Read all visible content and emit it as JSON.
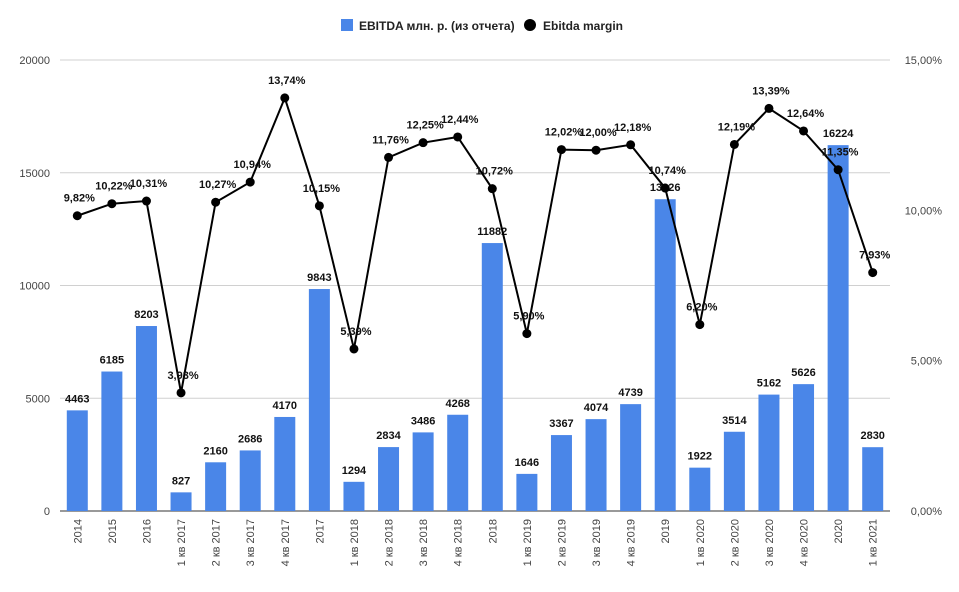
{
  "chart_data": {
    "type": "bar",
    "legend": {
      "bar_series": "EBITDA млн. р. (из отчета)",
      "line_series": "Ebitda margin",
      "placement": "top-center"
    },
    "categories": [
      "2014",
      "2015",
      "2016",
      "1 кв 2017",
      "2 кв 2017",
      "3 кв 2017",
      "4 кв 2017",
      "2017",
      "1 кв 2018",
      "2 кв 2018",
      "3 кв 2018",
      "4 кв 2018",
      "2018",
      "1 кв 2019",
      "2 кв 2019",
      "3 кв 2019",
      "4 кв 2019",
      "2019",
      "1 кв 2020",
      "2 кв 2020",
      "3 кв 2020",
      "4 кв 2020",
      "2020",
      "1 кв 2021"
    ],
    "series": [
      {
        "name": "EBITDA млн. р. (из отчета)",
        "type": "bar",
        "axis": "left",
        "color": "#4a86e8",
        "values": [
          4463,
          6185,
          8203,
          827,
          2160,
          2686,
          4170,
          9843,
          1294,
          2834,
          3486,
          4268,
          11882,
          1646,
          3367,
          4074,
          4739,
          13826,
          1922,
          3514,
          5162,
          5626,
          16224,
          2830
        ],
        "labels": [
          "4463",
          "6185",
          "8203",
          "827",
          "2160",
          "2686",
          "4170",
          "9843",
          "1294",
          "2834",
          "3486",
          "4268",
          "11882",
          "1646",
          "3367",
          "4074",
          "4739",
          "13826",
          "1922",
          "3514",
          "5162",
          "5626",
          "16224",
          "2830"
        ]
      },
      {
        "name": "Ebitda margin",
        "type": "line",
        "axis": "right",
        "color": "#000000",
        "values": [
          9.82,
          10.22,
          10.31,
          3.93,
          10.27,
          10.94,
          13.74,
          10.15,
          5.39,
          11.76,
          12.25,
          12.44,
          10.72,
          5.9,
          12.02,
          12.0,
          12.18,
          10.74,
          6.2,
          12.19,
          13.39,
          12.64,
          11.35,
          7.93
        ],
        "labels": [
          "9,82%",
          "10,22%",
          "10,31%",
          "3,93%",
          "10,27%",
          "10,94%",
          "13,74%",
          "10,15%",
          "5,39%",
          "11,76%",
          "12,25%",
          "12,44%",
          "10,72%",
          "5,90%",
          "12,02%",
          "12,00%",
          "12,18%",
          "10,74%",
          "6,20%",
          "12,19%",
          "13,39%",
          "12,64%",
          "11,35%",
          "7,93%"
        ]
      }
    ],
    "y_left": {
      "range": [
        0,
        20000
      ],
      "ticks": [
        0,
        5000,
        10000,
        15000,
        20000
      ],
      "tick_labels": [
        "0",
        "5000",
        "10000",
        "15000",
        "20000"
      ]
    },
    "y_right": {
      "range": [
        0,
        15
      ],
      "ticks": [
        0,
        5,
        10,
        15
      ],
      "tick_labels": [
        "0,00%",
        "5,00%",
        "10,00%",
        "15,00%"
      ]
    },
    "grid": true
  }
}
